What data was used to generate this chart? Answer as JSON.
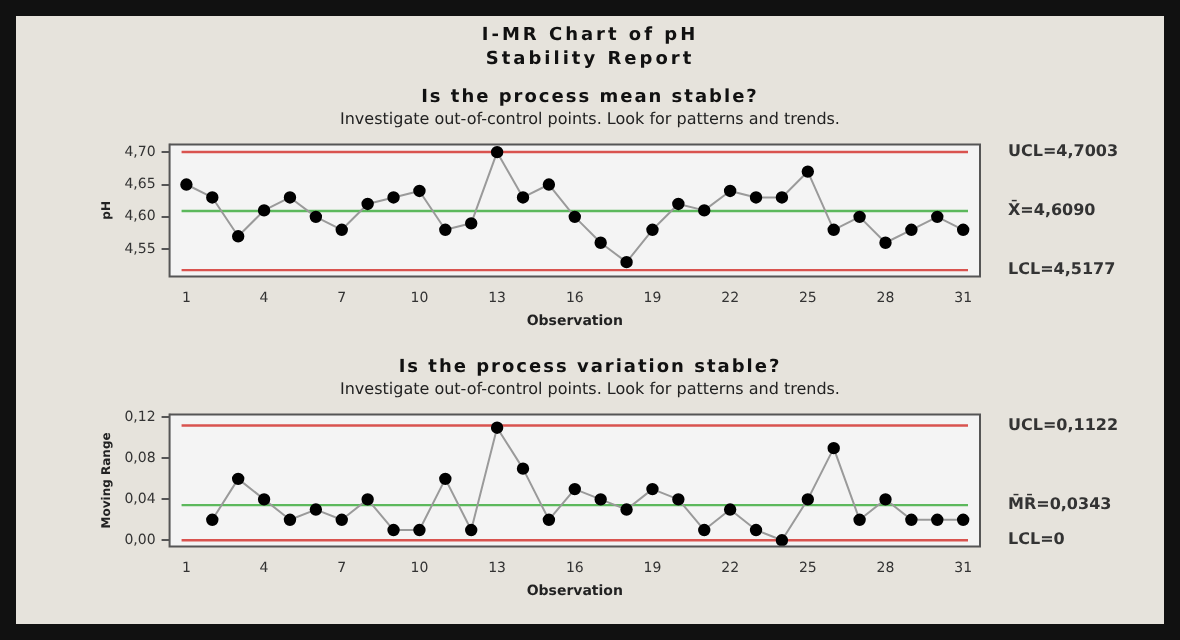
{
  "chart_data": [
    {
      "type": "line",
      "annotations": [
        "I-MR Chart of pH",
        "Stability Report"
      ],
      "title": "Is the process mean stable?",
      "subtitle": "Investigate out-of-control points. Look for patterns and trends.",
      "xlabel": "Observation",
      "ylabel": "pH",
      "marker": "circle",
      "x": [
        1,
        2,
        3,
        4,
        5,
        6,
        7,
        8,
        9,
        10,
        11,
        12,
        13,
        14,
        15,
        16,
        17,
        18,
        19,
        20,
        21,
        22,
        23,
        24,
        25,
        26,
        27,
        28,
        29,
        30,
        31
      ],
      "series": [
        {
          "color": "#000000",
          "values": [
            4.65,
            4.63,
            4.57,
            4.61,
            4.63,
            4.6,
            4.58,
            4.62,
            4.63,
            4.64,
            4.58,
            4.59,
            4.7,
            4.63,
            4.65,
            4.6,
            4.56,
            4.53,
            4.58,
            4.62,
            4.61,
            4.64,
            4.63,
            4.63,
            4.67,
            4.58,
            4.6,
            4.56,
            4.58,
            4.6,
            4.58
          ]
        }
      ],
      "xlim": [
        0.35,
        31.65
      ],
      "xticks": [
        1,
        4,
        7,
        10,
        13,
        16,
        19,
        22,
        25,
        28,
        31
      ],
      "ylim": [
        4.508,
        4.712
      ],
      "yticks": [
        {
          "value": 4.55,
          "label": "4,55"
        },
        {
          "value": 4.6,
          "label": "4,60"
        },
        {
          "value": 4.65,
          "label": "4,65"
        },
        {
          "value": 4.7,
          "label": "4,70"
        }
      ],
      "ref_lines": [
        {
          "axis": "y",
          "value": 4.7003,
          "label": "UCL=4,7003",
          "color": "#d9534f"
        },
        {
          "axis": "y",
          "value": 4.609,
          "label": "X̄=4,6090",
          "color": "#5cb85c"
        },
        {
          "axis": "y",
          "value": 4.5177,
          "label": "LCL=4,5177",
          "color": "#d9534f"
        }
      ]
    },
    {
      "type": "line",
      "title": "Is the process variation stable?",
      "subtitle": "Investigate out-of-control points. Look for patterns and trends.",
      "xlabel": "Observation",
      "ylabel": "Moving Range",
      "marker": "circle",
      "series": [
        {
          "color": "#000000",
          "x": [
            2,
            3,
            4,
            5,
            6,
            7,
            8,
            9,
            10,
            11,
            12,
            13,
            14,
            15,
            16,
            17,
            18,
            19,
            20,
            21,
            22,
            23,
            24,
            25,
            26,
            27,
            28,
            29,
            30,
            31
          ],
          "values": [
            0.02,
            0.06,
            0.04,
            0.02,
            0.03,
            0.02,
            0.04,
            0.01,
            0.01,
            0.06,
            0.01,
            0.11,
            0.07,
            0.02,
            0.05,
            0.04,
            0.03,
            0.05,
            0.04,
            0.01,
            0.03,
            0.01,
            0.0,
            0.04,
            0.09,
            0.02,
            0.04,
            0.02,
            0.02,
            0.02
          ]
        }
      ],
      "xlim": [
        0.35,
        31.65
      ],
      "xticks": [
        1,
        4,
        7,
        10,
        13,
        16,
        19,
        22,
        25,
        28,
        31
      ],
      "ylim": [
        -0.006,
        0.123
      ],
      "yticks": [
        {
          "value": 0,
          "label": "0,00"
        },
        {
          "value": 0.04,
          "label": "0,04"
        },
        {
          "value": 0.08,
          "label": "0,08"
        },
        {
          "value": 0.12,
          "label": "0,12"
        }
      ],
      "ref_lines": [
        {
          "axis": "y",
          "value": 0.1122,
          "label": "UCL=0,1122",
          "color": "#d9534f"
        },
        {
          "axis": "y",
          "value": 0.0343,
          "label": "M̄R̄=0,0343",
          "color": "#5cb85c"
        },
        {
          "axis": "y",
          "value": 0,
          "label": "LCL=0",
          "color": "#d9534f"
        }
      ]
    }
  ]
}
